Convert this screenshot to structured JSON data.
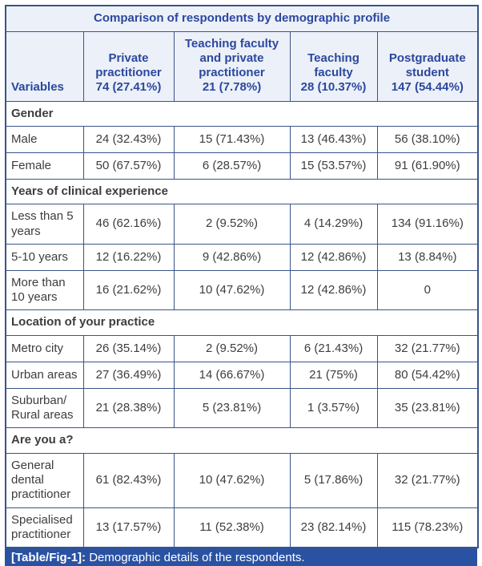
{
  "title": "Comparison of respondents by demographic profile",
  "header": {
    "variables_label": "Variables",
    "columns": [
      {
        "label": "Private practitioner",
        "count": "74 (27.41%)"
      },
      {
        "label": "Teaching faculty and private practitioner",
        "count": "21 (7.78%)"
      },
      {
        "label": "Teaching faculty",
        "count": "28 (10.37%)"
      },
      {
        "label": "Postgraduate student",
        "count": "147 (54.44%)"
      }
    ]
  },
  "sections": [
    {
      "name": "Gender",
      "rows": [
        {
          "label": "Male",
          "values": [
            "24 (32.43%)",
            "15 (71.43%)",
            "13 (46.43%)",
            "56 (38.10%)"
          ]
        },
        {
          "label": "Female",
          "values": [
            "50 (67.57%)",
            "6 (28.57%)",
            "15 (53.57%)",
            "91 (61.90%)"
          ]
        }
      ]
    },
    {
      "name": "Years of clinical experience",
      "rows": [
        {
          "label": "Less than 5 years",
          "values": [
            "46 (62.16%)",
            "2 (9.52%)",
            "4 (14.29%)",
            "134 (91.16%)"
          ]
        },
        {
          "label": "5-10 years",
          "values": [
            "12 (16.22%)",
            "9 (42.86%)",
            "12 (42.86%)",
            "13 (8.84%)"
          ]
        },
        {
          "label": "More than 10 years",
          "values": [
            "16 (21.62%)",
            "10 (47.62%)",
            "12 (42.86%)",
            "0"
          ]
        }
      ]
    },
    {
      "name": "Location of your practice",
      "rows": [
        {
          "label": "Metro city",
          "values": [
            "26 (35.14%)",
            "2 (9.52%)",
            "6 (21.43%)",
            "32 (21.77%)"
          ]
        },
        {
          "label": "Urban areas",
          "values": [
            "27 (36.49%)",
            "14 (66.67%)",
            "21 (75%)",
            "80 (54.42%)"
          ]
        },
        {
          "label": "Suburban/ Rural areas",
          "values": [
            "21 (28.38%)",
            "5 (23.81%)",
            "1 (3.57%)",
            "35 (23.81%)"
          ]
        }
      ]
    },
    {
      "name": "Are you a?",
      "rows": [
        {
          "label": "General dental practitioner",
          "values": [
            "61 (82.43%)",
            "10 (47.62%)",
            "5 (17.86%)",
            "32 (21.77%)"
          ]
        },
        {
          "label": "Specialised practitioner",
          "values": [
            "13 (17.57%)",
            "11 (52.38%)",
            "23 (82.14%)",
            "115 (78.23%)"
          ]
        }
      ]
    }
  ],
  "caption": {
    "tag": "[Table/Fig-1]:",
    "text": "Demographic details of the respondents."
  },
  "colors": {
    "border": "#3a5488",
    "header_bg": "#ecf0f8",
    "header_text": "#2b489e",
    "body_text": "#3d3d3d",
    "caption_bg": "#2a52a2",
    "caption_text": "#ffffff"
  }
}
